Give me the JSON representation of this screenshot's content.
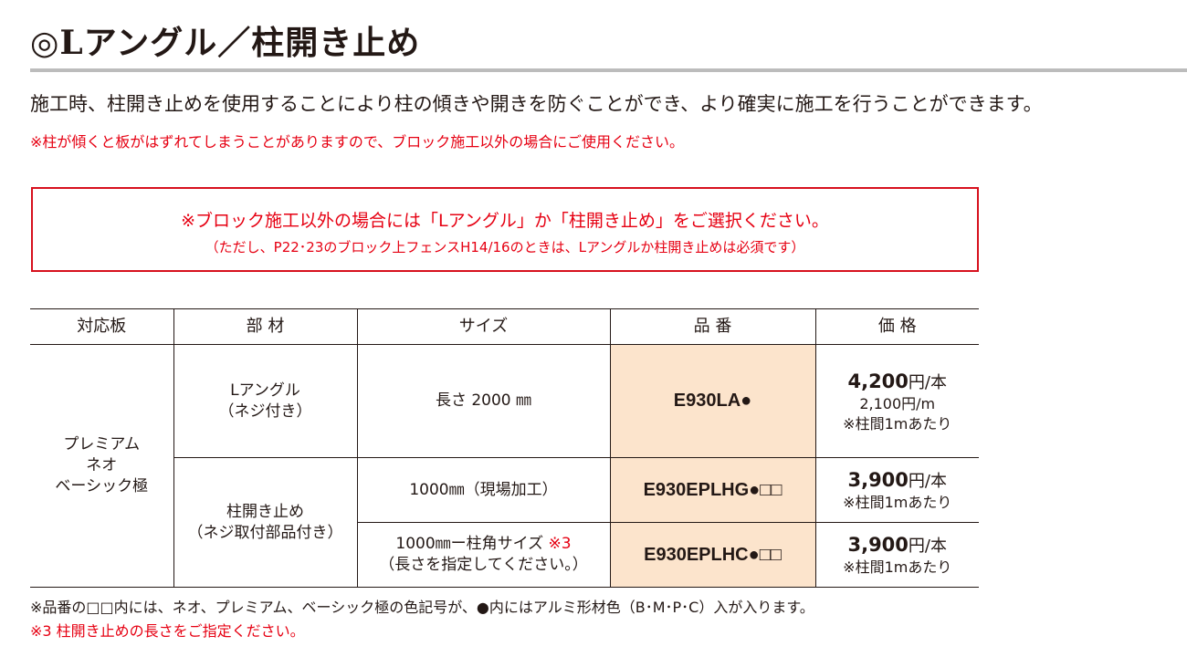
{
  "title": "◎Lアングル／柱開き止め",
  "lead": "施工時、柱開き止めを使用することにより柱の傾きや開きを防ぐことができ、より確実に施工を行うことができます。",
  "note": "※柱が傾くと板がはずれてしまうことがありますので、ブロック施工以外の場合にご使用ください。",
  "notice_box": {
    "line1": "※ブロック施工以外の場合には「Lアングル」か「柱開き止め」をご選択ください。",
    "line2": "（ただし、P22･23のブロック上フェンスH14/16のときは、Lアングルか柱開き止めは必須です）"
  },
  "table": {
    "headers": [
      "対応板",
      "部 材",
      "サイズ",
      "品 番",
      "価 格"
    ],
    "board": [
      "プレミアム",
      "ネオ",
      "ベーシック極"
    ],
    "rows": [
      {
        "part": [
          "Lアングル",
          "（ネジ付き）"
        ],
        "size": "長さ 2000 ㎜",
        "code": "E930LA●",
        "price": "4,200",
        "unit": "円/本",
        "sub": "2,100円/m",
        "per": "※柱間1mあたり"
      },
      {
        "part": [
          "柱開き止め",
          "（ネジ取付部品付き）"
        ],
        "size": "1000㎜（現場加工）",
        "code": "E930EPLHG●□□",
        "price": "3,900",
        "unit": "円/本",
        "per": "※柱間1mあたり"
      },
      {
        "size": "1000㎜ー柱角サイズ",
        "size_mark": "※3",
        "size2": "（長さを指定してください。）",
        "code": "E930EPLHC●□□",
        "price": "3,900",
        "unit": "円/本",
        "per": "※柱間1mあたり"
      }
    ]
  },
  "footnote1": "※品番の□□内には、ネオ、プレミアム、ベーシック極の色記号が、●内にはアルミ形材色（B･M･P･C）入が入ります。",
  "footnote2": "※3 柱開き止めの長さをご指定ください。",
  "colors": {
    "red": "#e60012",
    "code_bg": "#fce4cc",
    "rule": "#bcbcbc"
  }
}
